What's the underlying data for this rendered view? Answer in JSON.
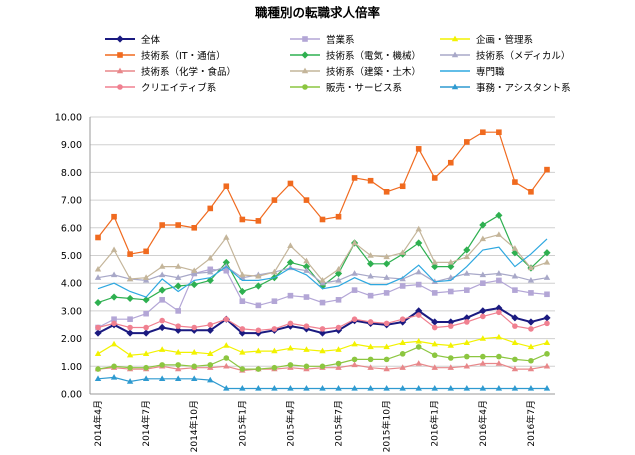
{
  "chart_data": {
    "type": "line",
    "title": "職種別の転職求人倍率",
    "xlabel": "",
    "ylabel": "",
    "ylim": [
      0,
      10
    ],
    "yticks": [
      "0.00",
      "1.00",
      "2.00",
      "3.00",
      "4.00",
      "5.00",
      "6.00",
      "7.00",
      "8.00",
      "9.00",
      "10.00"
    ],
    "xticks": [
      {
        "index": 0,
        "label": "2014年4月"
      },
      {
        "index": 3,
        "label": "2014年7月"
      },
      {
        "index": 6,
        "label": "2014年10月"
      },
      {
        "index": 9,
        "label": "2015年1月"
      },
      {
        "index": 12,
        "label": "2015年4月"
      },
      {
        "index": 15,
        "label": "2015年7月"
      },
      {
        "index": 18,
        "label": "2015年10月"
      },
      {
        "index": 21,
        "label": "2016年1月"
      },
      {
        "index": 24,
        "label": "2016年4月"
      },
      {
        "index": 27,
        "label": "2016年7月"
      }
    ],
    "grid": true,
    "legend_position": "top",
    "series": [
      {
        "name": "全体",
        "color": "#1a1a80",
        "marker": "diamond",
        "width": 2,
        "values": [
          2.2,
          2.5,
          2.2,
          2.2,
          2.4,
          2.3,
          2.3,
          2.3,
          2.7,
          2.2,
          2.2,
          2.3,
          2.45,
          2.35,
          2.2,
          2.3,
          2.65,
          2.55,
          2.5,
          2.6,
          3.0,
          2.6,
          2.6,
          2.75,
          3.0,
          3.1,
          2.75,
          2.6,
          2.75
        ]
      },
      {
        "name": "営業系",
        "color": "#b3a6d6",
        "marker": "square",
        "values": [
          2.4,
          2.7,
          2.7,
          2.9,
          3.4,
          3.0,
          4.35,
          4.5,
          4.45,
          3.35,
          3.2,
          3.35,
          3.55,
          3.5,
          3.3,
          3.4,
          3.75,
          3.55,
          3.65,
          3.9,
          3.95,
          3.65,
          3.7,
          3.75,
          4.0,
          4.1,
          3.75,
          3.65,
          3.6
        ]
      },
      {
        "name": "企画・管理系",
        "color": "#f2f200",
        "marker": "triangle",
        "values": [
          1.45,
          1.8,
          1.4,
          1.45,
          1.6,
          1.5,
          1.5,
          1.45,
          1.75,
          1.5,
          1.55,
          1.55,
          1.65,
          1.6,
          1.55,
          1.6,
          1.8,
          1.7,
          1.7,
          1.85,
          1.9,
          1.8,
          1.75,
          1.85,
          2.0,
          2.05,
          1.85,
          1.7,
          1.85
        ]
      },
      {
        "name": "技術系（IT・通信）",
        "color": "#f06a1f",
        "marker": "square",
        "values": [
          5.65,
          6.4,
          5.05,
          5.15,
          6.1,
          6.1,
          6.0,
          6.7,
          7.5,
          6.3,
          6.25,
          7.0,
          7.6,
          7.0,
          6.3,
          6.4,
          7.8,
          7.7,
          7.3,
          7.5,
          8.85,
          7.8,
          8.35,
          9.1,
          9.45,
          9.45,
          7.65,
          7.3,
          8.1
        ]
      },
      {
        "name": "技術系（電気・機械）",
        "color": "#2eb050",
        "marker": "diamond",
        "values": [
          3.3,
          3.5,
          3.45,
          3.4,
          3.75,
          3.9,
          3.95,
          4.1,
          4.75,
          3.7,
          3.9,
          4.2,
          4.75,
          4.6,
          3.9,
          4.35,
          5.45,
          4.7,
          4.7,
          5.05,
          5.45,
          4.6,
          4.6,
          5.2,
          6.1,
          6.45,
          5.1,
          4.55,
          5.1
        ]
      },
      {
        "name": "技術系（メディカル）",
        "color": "#a8a8c8",
        "marker": "triangle",
        "values": [
          4.2,
          4.3,
          4.15,
          4.1,
          4.3,
          4.2,
          4.35,
          4.4,
          4.6,
          4.2,
          4.3,
          4.4,
          4.55,
          4.45,
          4.0,
          4.1,
          4.35,
          4.25,
          4.2,
          4.15,
          4.4,
          4.05,
          4.2,
          4.35,
          4.3,
          4.35,
          4.25,
          4.1,
          4.2
        ]
      },
      {
        "name": "技術系（化学・食品）",
        "color": "#e8878a",
        "marker": "triangle",
        "values": [
          0.9,
          0.95,
          0.9,
          0.9,
          1.0,
          0.9,
          0.95,
          0.95,
          1.0,
          0.85,
          0.9,
          0.9,
          0.95,
          0.9,
          0.95,
          0.95,
          1.05,
          0.95,
          0.9,
          0.95,
          1.1,
          0.95,
          0.95,
          1.0,
          1.1,
          1.1,
          0.9,
          0.9,
          1.0
        ]
      },
      {
        "name": "技術系（建築・土木）",
        "color": "#c4b59a",
        "marker": "triangle",
        "values": [
          4.5,
          5.2,
          4.15,
          4.2,
          4.6,
          4.6,
          4.45,
          4.9,
          5.65,
          4.3,
          4.25,
          4.4,
          5.35,
          4.8,
          4.1,
          4.5,
          5.45,
          5.0,
          4.95,
          5.1,
          5.95,
          4.75,
          4.75,
          4.95,
          5.6,
          5.75,
          5.25,
          4.55,
          4.75
        ]
      },
      {
        "name": "専門職",
        "color": "#2ea8e0",
        "marker": "none",
        "values": [
          3.8,
          4.0,
          3.7,
          3.5,
          4.15,
          3.7,
          4.1,
          4.2,
          4.6,
          4.1,
          4.1,
          4.2,
          4.55,
          4.3,
          3.8,
          3.9,
          4.2,
          3.95,
          3.95,
          4.2,
          4.65,
          4.05,
          4.1,
          4.6,
          5.2,
          5.3,
          4.6,
          5.05,
          5.6
        ]
      },
      {
        "name": "クリエイティブ系",
        "color": "#f08090",
        "marker": "circle",
        "values": [
          2.4,
          2.55,
          2.4,
          2.4,
          2.65,
          2.45,
          2.4,
          2.5,
          2.7,
          2.35,
          2.3,
          2.35,
          2.55,
          2.45,
          2.35,
          2.4,
          2.7,
          2.6,
          2.55,
          2.7,
          2.85,
          2.4,
          2.45,
          2.6,
          2.8,
          2.95,
          2.45,
          2.35,
          2.55
        ]
      },
      {
        "name": "販売・サービス系",
        "color": "#8cc640",
        "marker": "circle",
        "values": [
          0.9,
          1.0,
          0.95,
          0.95,
          1.05,
          1.05,
          1.0,
          1.05,
          1.3,
          0.9,
          0.9,
          0.95,
          1.05,
          1.0,
          1.0,
          1.1,
          1.25,
          1.25,
          1.25,
          1.45,
          1.7,
          1.4,
          1.3,
          1.35,
          1.35,
          1.35,
          1.25,
          1.2,
          1.45
        ]
      },
      {
        "name": "事務・アシスタント系",
        "color": "#2e9ad0",
        "marker": "triangle",
        "values": [
          0.55,
          0.6,
          0.45,
          0.55,
          0.55,
          0.55,
          0.55,
          0.5,
          0.2,
          0.2,
          0.2,
          0.2,
          0.2,
          0.2,
          0.2,
          0.2,
          0.2,
          0.2,
          0.2,
          0.2,
          0.2,
          0.2,
          0.2,
          0.2,
          0.2,
          0.2,
          0.2,
          0.2,
          0.2
        ]
      }
    ]
  }
}
